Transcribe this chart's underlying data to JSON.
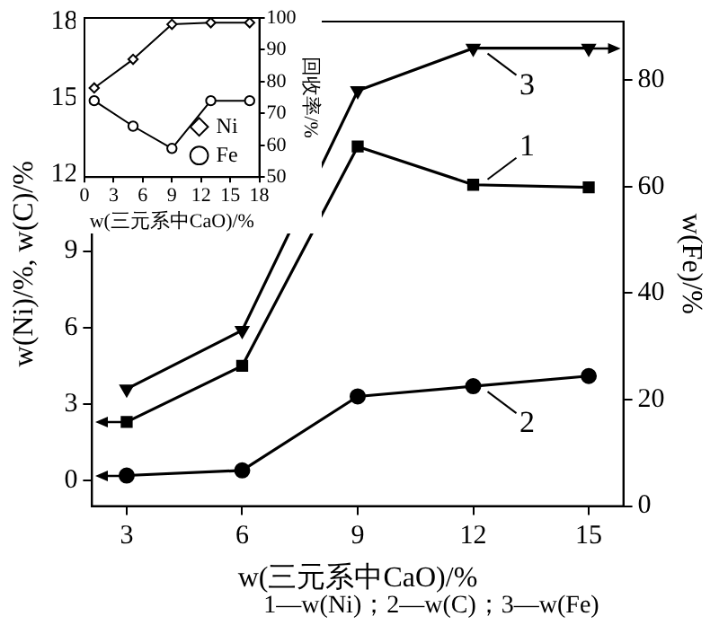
{
  "chart_data": [
    {
      "type": "line",
      "xlabel": "w(三元系中CaO)/%",
      "ylabel": "w(Ni)/%, w(C)/%",
      "y2label": "w(Fe)/%",
      "x": [
        3,
        6,
        9,
        12,
        15
      ],
      "xlim": [
        2.1,
        15.9
      ],
      "xticks": [
        3,
        6,
        9,
        12,
        15
      ],
      "ylim": [
        -1,
        18
      ],
      "yticks": [
        0,
        3,
        6,
        9,
        12,
        15,
        18
      ],
      "y2lim": [
        0,
        91
      ],
      "y2ticks": [
        0,
        20,
        40,
        60,
        80
      ],
      "series": [
        {
          "color": "#000000",
          "marker": "square",
          "values": [
            2.3,
            4.5,
            13.1,
            11.6,
            11.5
          ]
        },
        {
          "color": "#000000",
          "marker": "circle",
          "values": [
            0.2,
            0.4,
            3.3,
            3.7,
            4.1
          ]
        },
        {
          "color": "#000000",
          "marker": "triangle",
          "axis": "y2",
          "values": [
            22,
            33,
            78,
            86,
            86
          ]
        }
      ],
      "annotations": [
        "1",
        "2",
        "3",
        "1—w(Ni)；2—w(C)；3—w(Fe)"
      ],
      "grid": false
    },
    {
      "type": "line",
      "xlabel": "w(三元系中CaO)/%",
      "y2label": "回收率/%",
      "x": [
        1,
        5,
        9,
        13,
        17
      ],
      "xlim": [
        0,
        18
      ],
      "xticks": [
        0,
        3,
        6,
        9,
        12,
        15,
        18
      ],
      "y2lim": [
        50,
        100
      ],
      "y2ticks": [
        50,
        60,
        70,
        80,
        90,
        100
      ],
      "series": [
        {
          "name": "Ni",
          "color": "#000000",
          "marker": "diamond",
          "axis": "y2",
          "values": [
            78,
            87,
            98,
            98.5,
            98.5
          ]
        },
        {
          "name": "Fe",
          "color": "#000000",
          "marker": "circle",
          "axis": "y2",
          "values": [
            74,
            66,
            59,
            74,
            74
          ]
        }
      ],
      "grid": false,
      "legend": "bottom right"
    }
  ]
}
